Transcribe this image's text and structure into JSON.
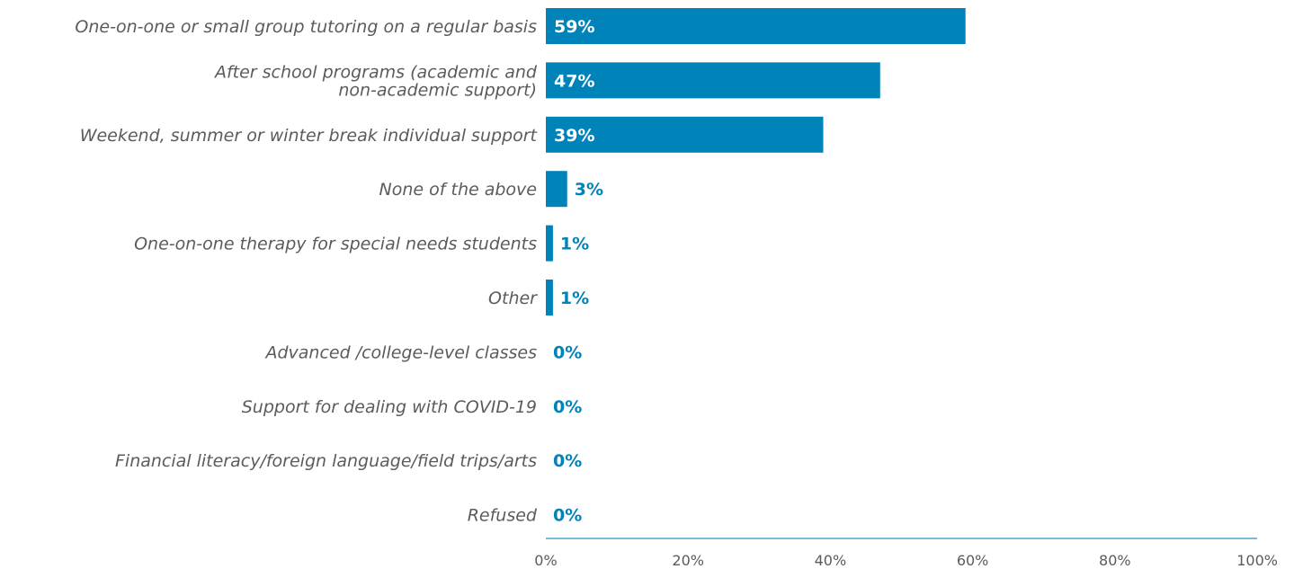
{
  "chart_data": {
    "type": "bar",
    "orientation": "horizontal",
    "categories": [
      "One-on-one or small group tutoring on a regular basis",
      [
        "After school programs (academic and",
        "non-academic support)"
      ],
      "Weekend, summer or winter break individual support",
      "None of the above",
      "One-on-one therapy for special needs students",
      "Other",
      "Advanced /college-level classes",
      "Support for dealing with COVID-19",
      "Financial literacy/foreign language/field trips/arts",
      "Refused"
    ],
    "values": [
      59,
      47,
      39,
      3,
      1,
      1,
      0,
      0,
      0,
      0
    ],
    "value_labels": [
      "59%",
      "47%",
      "39%",
      "3%",
      "1%",
      "1%",
      "0%",
      "0%",
      "0%",
      "0%"
    ],
    "xlim": [
      0,
      100
    ],
    "xticks": [
      0,
      20,
      40,
      60,
      80,
      100
    ],
    "xtick_labels": [
      "0%",
      "20%",
      "40%",
      "60%",
      "80%",
      "100%"
    ],
    "title": "",
    "xlabel": "",
    "ylabel": "",
    "grid": false,
    "legend": "none",
    "colors": {
      "bar": "#0083b8",
      "axis": "#4da3cc",
      "category_text": "#5b5b5b",
      "tick_text": "#5b5b5b"
    }
  }
}
